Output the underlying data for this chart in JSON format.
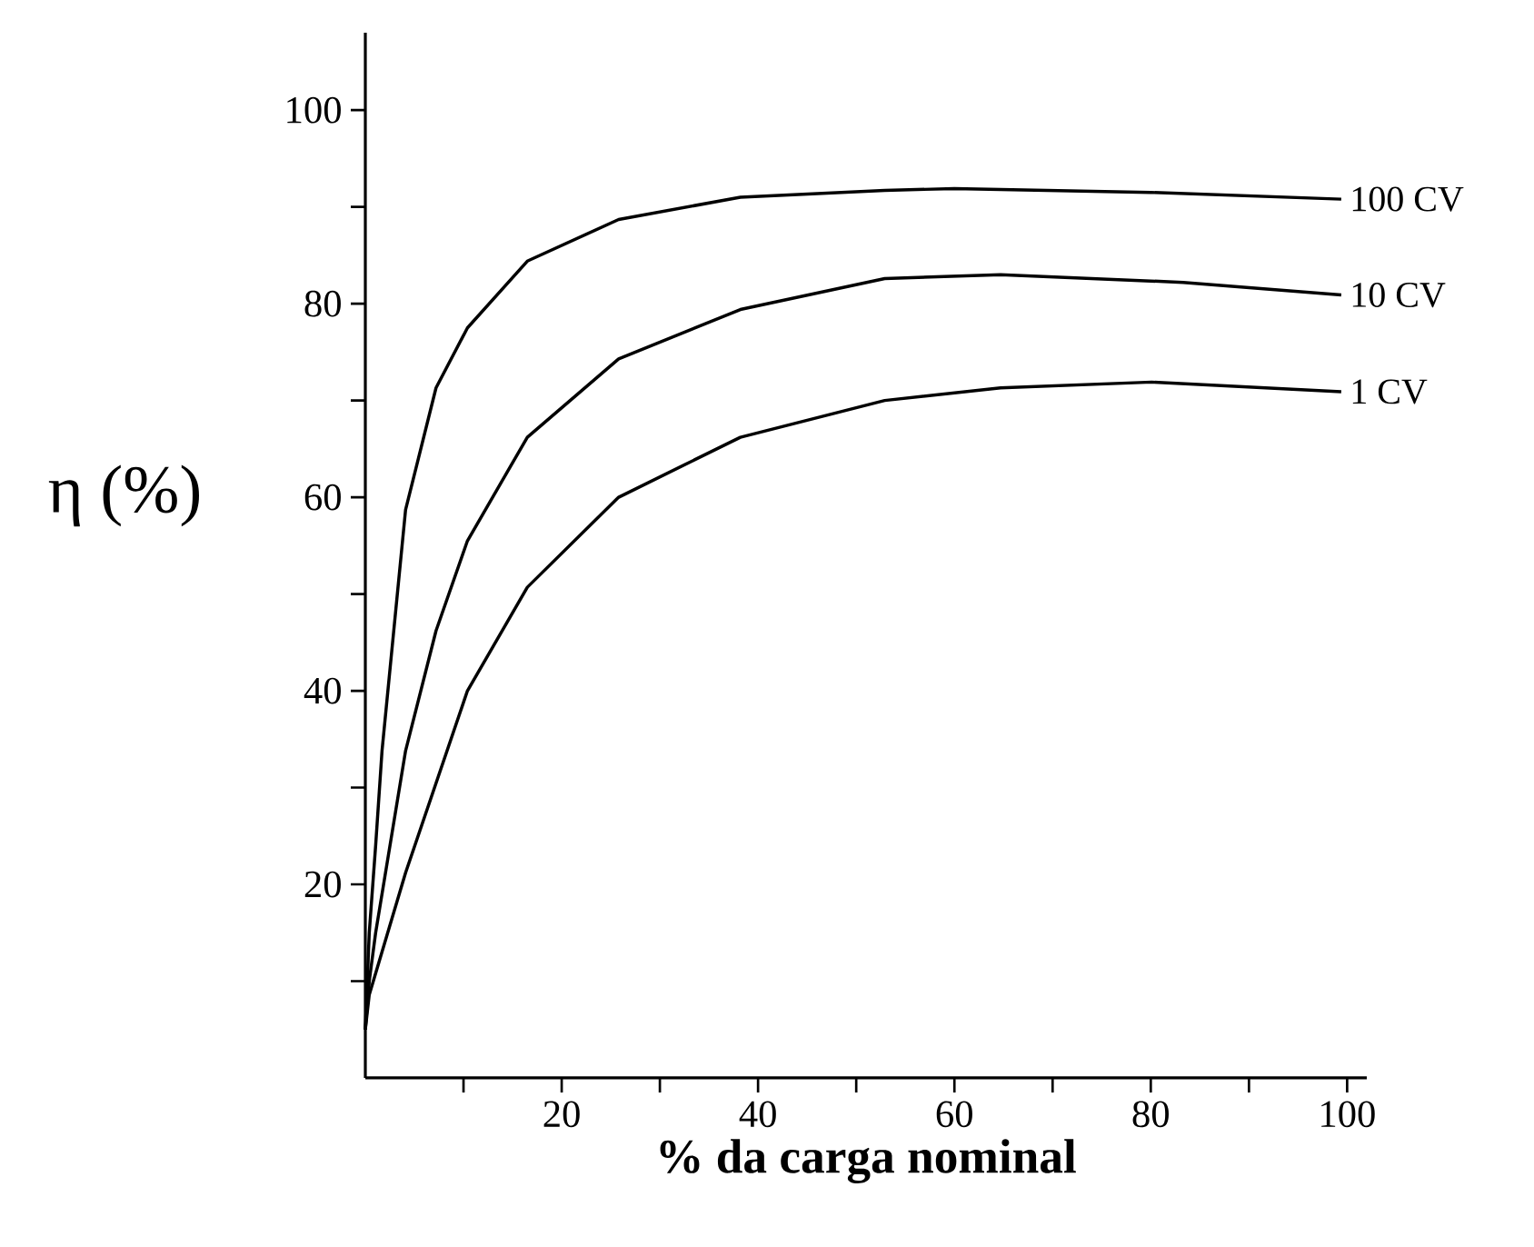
{
  "chart_data": {
    "type": "line",
    "xlabel": "**% da carga nominal**",
    "ylabel": "η (%)",
    "xlim": [
      0,
      102
    ],
    "ylim": [
      0,
      108
    ],
    "xticks": [
      {
        "value": 10,
        "label": null
      },
      20,
      {
        "value": 30,
        "label": null
      },
      40,
      {
        "value": 50,
        "label": null
      },
      60,
      {
        "value": 70,
        "label": null
      },
      80,
      {
        "value": 90,
        "label": null
      },
      100
    ],
    "yticks": [
      {
        "value": 10,
        "label": null
      },
      20,
      {
        "value": 30,
        "label": null
      },
      40,
      {
        "value": 50,
        "label": null
      },
      60,
      {
        "value": 70,
        "label": null
      },
      80,
      {
        "value": 90,
        "label": null
      },
      100
    ],
    "series": [
      {
        "name": "100 CV",
        "color": "#000000",
        "x": [
          0,
          0.4,
          1.05,
          1.7,
          4.1,
          7.2,
          10.4,
          16.5,
          25.8,
          38.2,
          52.9,
          60,
          80,
          99.4
        ],
        "values": [
          5,
          15,
          24,
          33.8,
          58.7,
          71.3,
          77.5,
          84.4,
          88.7,
          91.0,
          91.7,
          91.9,
          91.5,
          90.8
        ]
      },
      {
        "name": "10 CV",
        "color": "#000000",
        "x": [
          0,
          0.4,
          1.05,
          4.1,
          7.2,
          10.4,
          16.5,
          25.8,
          38.2,
          52.9,
          64.7,
          83.3,
          99.4
        ],
        "values": [
          5,
          10,
          15,
          33.8,
          46.2,
          55.5,
          66.2,
          74.3,
          79.4,
          82.6,
          83.0,
          82.2,
          80.9
        ]
      },
      {
        "name": "1 CV",
        "color": "#000000",
        "x": [
          0,
          0.4,
          4.1,
          10.4,
          16.5,
          25.8,
          38.2,
          52.9,
          64.7,
          80.1,
          99.4
        ],
        "values": [
          5,
          8.6,
          21.2,
          40,
          50.7,
          60,
          66.2,
          70,
          71.3,
          71.9,
          70.9
        ]
      }
    ]
  }
}
